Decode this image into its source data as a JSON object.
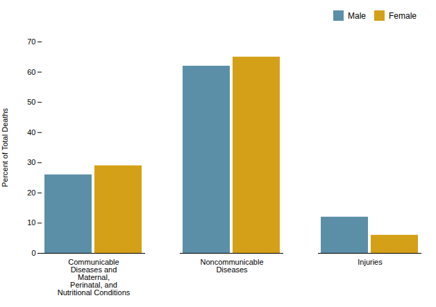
{
  "chart_data": {
    "type": "bar",
    "categories": [
      "Communicable\nDiseases and\nMaternal,\nPerinatal, and\nNutritional Conditions",
      "Noncommunicable\nDiseases",
      "Injuries"
    ],
    "series": [
      {
        "name": "Male",
        "color": "#5b8fa8",
        "values": [
          26,
          62,
          12
        ]
      },
      {
        "name": "Female",
        "color": "#d4a017",
        "values": [
          29,
          65,
          6
        ]
      }
    ],
    "ylabel": "Percent of Total Deaths",
    "ylim": [
      0,
      70
    ],
    "yticks": [
      0,
      10,
      20,
      30,
      40,
      50,
      60,
      70
    ],
    "grid": false,
    "legend": "upper right"
  }
}
